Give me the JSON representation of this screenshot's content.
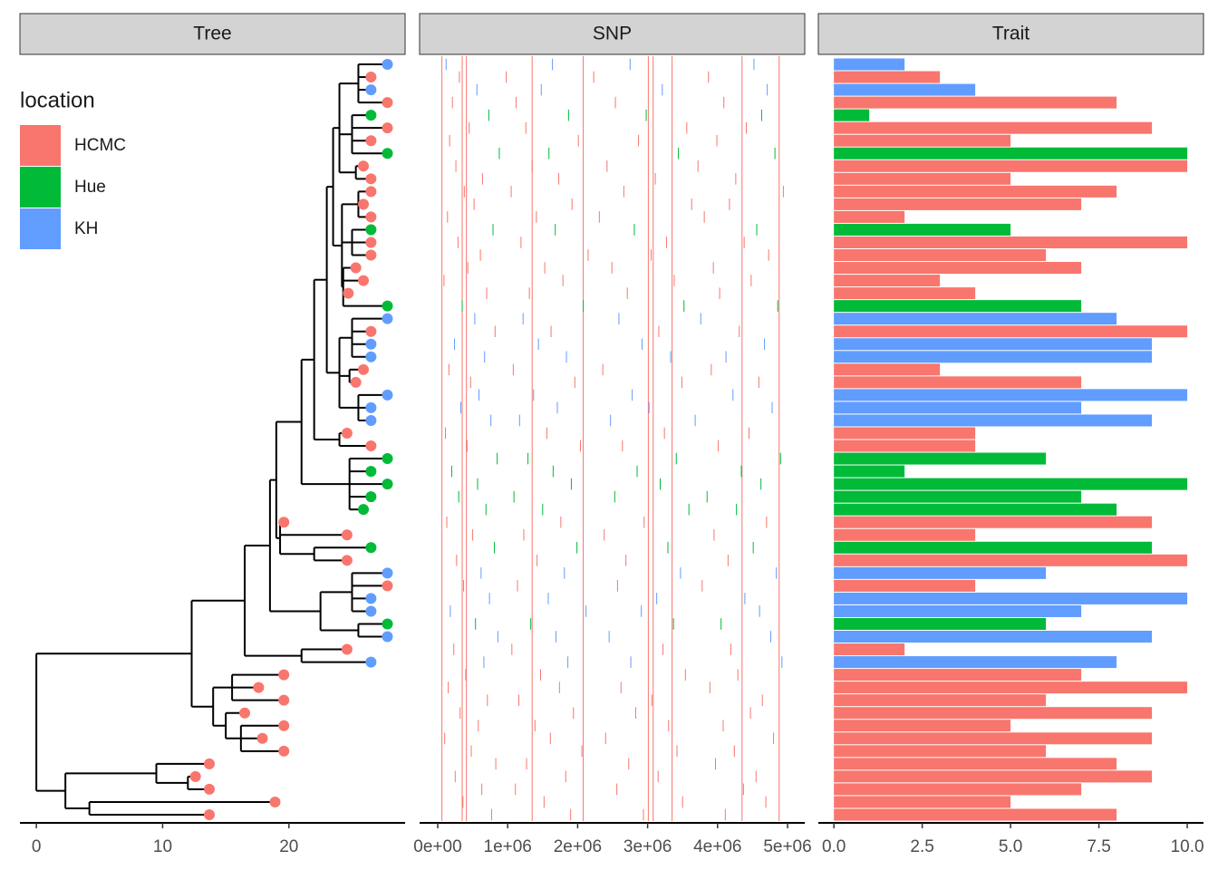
{
  "chart_data": [
    {
      "type": "tree",
      "title": "Tree",
      "xlim": [
        -1.3,
        29.2
      ],
      "xticks": [
        0,
        10,
        20
      ],
      "legend": {
        "title": "location",
        "names": [
          "HCMC",
          "Hue",
          "KH"
        ],
        "colors": [
          "#f8766d",
          "#00ba38",
          "#619cff"
        ]
      },
      "tips": {
        "x": [
          27.8,
          26.5,
          26.5,
          27.8,
          26.5,
          27.8,
          26.5,
          27.8,
          25.9,
          26.5,
          26.5,
          25.9,
          26.5,
          26.5,
          26.5,
          26.5,
          25.3,
          25.9,
          24.7,
          27.8,
          27.8,
          26.5,
          26.5,
          26.5,
          25.9,
          25.3,
          27.8,
          26.5,
          26.5,
          24.6,
          26.5,
          27.8,
          26.5,
          27.8,
          26.5,
          25.9,
          19.6,
          24.6,
          26.5,
          24.6,
          27.8,
          27.8,
          26.5,
          26.5,
          27.8,
          27.8,
          24.6,
          26.5,
          19.6,
          17.6,
          19.6,
          16.5,
          19.6,
          17.9,
          19.6,
          13.7,
          12.6,
          13.7,
          18.9,
          13.7
        ],
        "location": [
          "KH",
          "HCMC",
          "KH",
          "HCMC",
          "Hue",
          "HCMC",
          "HCMC",
          "Hue",
          "HCMC",
          "HCMC",
          "HCMC",
          "HCMC",
          "HCMC",
          "Hue",
          "HCMC",
          "HCMC",
          "HCMC",
          "HCMC",
          "HCMC",
          "Hue",
          "KH",
          "HCMC",
          "KH",
          "KH",
          "HCMC",
          "HCMC",
          "KH",
          "KH",
          "KH",
          "HCMC",
          "HCMC",
          "Hue",
          "Hue",
          "Hue",
          "Hue",
          "Hue",
          "HCMC",
          "HCMC",
          "Hue",
          "HCMC",
          "KH",
          "HCMC",
          "KH",
          "KH",
          "Hue",
          "KH",
          "HCMC",
          "KH",
          "HCMC",
          "HCMC",
          "HCMC",
          "HCMC",
          "HCMC",
          "HCMC",
          "HCMC",
          "HCMC",
          "HCMC",
          "HCMC",
          "HCMC",
          "HCMC"
        ]
      },
      "tree": {
        "x": 0,
        "children": [
          {
            "x": 12.3,
            "children": [
              {
                "x": 16.5,
                "children": [
                  {
                    "x": 18.5,
                    "children": [
                      {
                        "x": 19.0,
                        "children": [
                          {
                            "x": 21.0,
                            "children": [
                              {
                                "x": 22.0,
                                "children": [
                                  {
                                    "x": 23.0,
                                    "children": [
                                      {
                                        "x": 23.5,
                                        "children": [
                                          {
                                            "x": 24.0,
                                            "children": [
                                              {
                                                "x": 25.5,
                                                "children": [
                                                  0,
                                                  1,
                                                  2,
                                                  3
                                                ]
                                              },
                                              {
                                                "x": 25.0,
                                                "children": [
                                                  4,
                                                  5,
                                                  6,
                                                  7
                                                ]
                                              },
                                              {
                                                "x": 25.3,
                                                "children": [
                                                  8,
                                                  9
                                                ]
                                              }
                                            ]
                                          },
                                          {
                                            "x": 24.2,
                                            "children": [
                                              {
                                                "x": 25.5,
                                                "children": [
                                                  10,
                                                  11,
                                                  12
                                                ]
                                              },
                                              {
                                                "x": 25.0,
                                                "children": [
                                                  13,
                                                  14,
                                                  15
                                                ]
                                              },
                                              {
                                                "x": 24.3,
                                                "children": [
                                                  16,
                                                  17,
                                                  18,
                                                  19
                                                ]
                                              }
                                            ]
                                          }
                                        ]
                                      },
                                      {
                                        "x": 24.0,
                                        "children": [
                                          {
                                            "x": 25.0,
                                            "children": [
                                              20,
                                              21,
                                              22,
                                              23
                                            ]
                                          },
                                          {
                                            "x": 24.8,
                                            "children": [
                                              24,
                                              25
                                            ]
                                          },
                                          {
                                            "x": 25.5,
                                            "children": [
                                              26,
                                              27,
                                              28
                                            ]
                                          }
                                        ]
                                      }
                                    ]
                                  },
                                  {
                                    "x": 24.0,
                                    "children": [
                                      29,
                                      30
                                    ]
                                  }
                                ]
                              },
                              {
                                "x": 24.8,
                                "children": [
                                  31,
                                  32,
                                  33,
                                  34,
                                  35
                                ]
                              }
                            ]
                          },
                          {
                            "x": 19.3,
                            "children": [
                              36,
                              37,
                              {
                                "x": 22.0,
                                "children": [
                                  38,
                                  39
                                ]
                              }
                            ]
                          }
                        ]
                      },
                      {
                        "x": 22.5,
                        "children": [
                          {
                            "x": 25.0,
                            "children": [
                              40,
                              41,
                              42,
                              43
                            ]
                          },
                          {
                            "x": 25.5,
                            "children": [
                              44,
                              45
                            ]
                          }
                        ]
                      }
                    ]
                  },
                  {
                    "x": 21.0,
                    "children": [
                      46,
                      47
                    ]
                  }
                ]
              },
              {
                "x": 14.0,
                "children": [
                  {
                    "x": 15.5,
                    "children": [
                      48,
                      49,
                      50
                    ]
                  },
                  {
                    "x": 15.0,
                    "children": [
                      51,
                      {
                        "x": 16.2,
                        "children": [
                          52,
                          53,
                          54
                        ]
                      }
                    ]
                  }
                ]
              }
            ]
          },
          {
            "x": 2.3,
            "children": [
              {
                "x": 9.5,
                "children": [
                  55,
                  {
                    "x": 12.0,
                    "children": [
                      56,
                      57
                    ]
                  }
                ]
              },
              {
                "x": 4.2,
                "children": [
                  58,
                  59
                ]
              }
            ]
          }
        ]
      }
    },
    {
      "type": "snp",
      "title": "SNP",
      "xlim": [
        -259000,
        5246000
      ],
      "xticks": [
        {
          "value": 0,
          "label": "0e+00"
        },
        {
          "value": 1000000,
          "label": "1e+06"
        },
        {
          "value": 2000000,
          "label": "2e+06"
        },
        {
          "value": 3000000,
          "label": "3e+06"
        },
        {
          "value": 4000000,
          "label": "4e+06"
        },
        {
          "value": 5000000,
          "label": "5e+06"
        }
      ],
      "core_color": "#f8766d",
      "core_positions": [
        60000,
        350000,
        410000,
        1350000,
        2080000,
        3010000,
        3080000,
        3350000,
        4350000,
        4880000
      ],
      "positions": [
        [
          120000,
          1640000,
          2750000,
          4520000
        ],
        [
          310000,
          980000,
          2230000,
          3870000
        ],
        [
          560000,
          1480000,
          3210000,
          4710000
        ],
        [
          210000,
          1120000,
          2540000,
          4090000
        ],
        [
          730000,
          1870000,
          2980000,
          4630000
        ],
        [
          450000,
          1260000,
          3560000,
          4410000
        ],
        [
          170000,
          2010000,
          2870000,
          3990000
        ],
        [
          880000,
          1590000,
          3440000,
          4820000
        ],
        [
          260000,
          1350000,
          2420000,
          3720000
        ],
        [
          640000,
          1730000,
          3110000,
          4260000
        ],
        [
          380000,
          1050000,
          2660000,
          4940000
        ],
        [
          520000,
          1920000,
          3630000,
          4170000
        ],
        [
          140000,
          1410000,
          2310000,
          3810000
        ],
        [
          790000,
          1680000,
          2810000,
          4560000
        ],
        [
          290000,
          1190000,
          3270000,
          4380000
        ],
        [
          610000,
          2150000,
          3050000,
          4730000
        ],
        [
          430000,
          1530000,
          2490000,
          3940000
        ],
        [
          90000,
          1790000,
          3380000,
          4480000
        ],
        [
          700000,
          1310000,
          2710000,
          4030000
        ],
        [
          350000,
          2080000,
          3520000,
          4860000
        ],
        [
          530000,
          1220000,
          2590000,
          3760000
        ],
        [
          820000,
          1620000,
          3160000,
          4310000
        ],
        [
          240000,
          1440000,
          2920000,
          4670000
        ],
        [
          670000,
          1840000,
          3330000,
          4120000
        ],
        [
          160000,
          1080000,
          2360000,
          3910000
        ],
        [
          470000,
          1960000,
          3490000,
          4590000
        ],
        [
          590000,
          1370000,
          2780000,
          4220000
        ],
        [
          330000,
          1710000,
          3020000,
          4780000
        ],
        [
          760000,
          1170000,
          2470000,
          3680000
        ],
        [
          110000,
          1560000,
          3240000,
          4450000
        ],
        [
          420000,
          2040000,
          2640000,
          4010000
        ],
        [
          850000,
          1290000,
          3410000,
          4900000
        ],
        [
          200000,
          1650000,
          2850000,
          4340000
        ],
        [
          570000,
          1910000,
          3180000,
          4620000
        ],
        [
          300000,
          1090000,
          2530000,
          3850000
        ],
        [
          690000,
          1500000,
          3590000,
          4270000
        ],
        [
          130000,
          1760000,
          2950000,
          4700000
        ],
        [
          500000,
          1230000,
          2380000,
          3950000
        ],
        [
          810000,
          1990000,
          3290000,
          4510000
        ],
        [
          270000,
          1420000,
          2690000,
          4150000
        ],
        [
          620000,
          1810000,
          3470000,
          4840000
        ],
        [
          370000,
          1140000,
          2570000,
          3780000
        ],
        [
          740000,
          1580000,
          3130000,
          4390000
        ],
        [
          180000,
          2120000,
          2910000,
          4600000
        ],
        [
          540000,
          1330000,
          3370000,
          4050000
        ],
        [
          860000,
          1690000,
          2450000,
          4760000
        ],
        [
          230000,
          1060000,
          3220000,
          4190000
        ],
        [
          660000,
          1860000,
          2760000,
          4920000
        ],
        [
          400000,
          1470000,
          3540000,
          4290000
        ],
        [
          150000,
          1740000,
          2620000,
          3890000
        ],
        [
          710000,
          1160000,
          3060000,
          4640000
        ],
        [
          320000,
          1940000,
          2830000,
          4470000
        ],
        [
          580000,
          1390000,
          3300000,
          4080000
        ],
        [
          100000,
          1610000,
          2400000,
          4800000
        ],
        [
          480000,
          2060000,
          3420000,
          4240000
        ],
        [
          830000,
          1270000,
          2730000,
          3970000
        ],
        [
          250000,
          1830000,
          3150000,
          4550000
        ],
        [
          630000,
          1110000,
          2560000,
          4370000
        ],
        [
          360000,
          1520000,
          3500000,
          4690000
        ],
        [
          770000,
          1900000,
          2940000,
          4110000
        ]
      ]
    },
    {
      "type": "bar",
      "title": "Trait",
      "xlim": [
        -0.44,
        10.46
      ],
      "xticks": [
        {
          "value": 0,
          "label": "0.0"
        },
        2.5,
        {
          "value": 5,
          "label": "5.0"
        },
        7.5,
        {
          "value": 10,
          "label": "10.0"
        }
      ],
      "values": [
        2,
        3,
        4,
        8,
        1,
        9,
        5,
        10,
        10,
        5,
        8,
        7,
        2,
        5,
        10,
        6,
        7,
        3,
        4,
        7,
        8,
        10,
        9,
        9,
        3,
        7,
        10,
        7,
        9,
        4,
        4,
        6,
        2,
        10,
        7,
        8,
        9,
        4,
        9,
        10,
        6,
        4,
        10,
        7,
        6,
        9,
        2,
        8,
        7,
        10,
        6,
        9,
        5,
        9,
        6,
        8,
        9,
        7,
        5,
        8
      ]
    }
  ]
}
